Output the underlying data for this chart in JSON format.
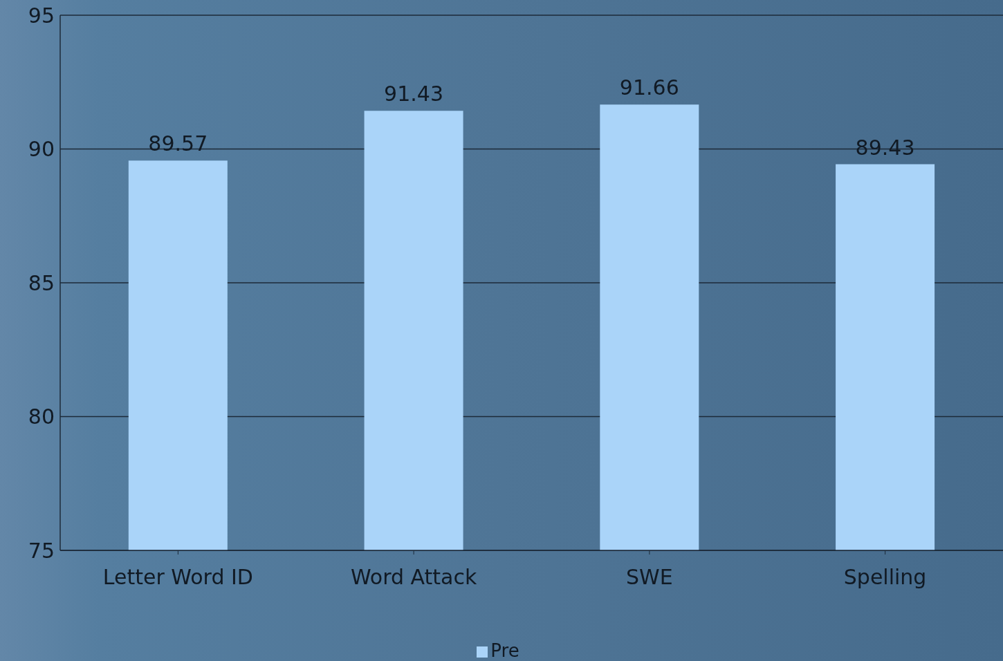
{
  "chart_data": {
    "type": "bar",
    "categories": [
      "Letter Word ID",
      "Word Attack",
      "SWE",
      "Spelling"
    ],
    "series": [
      {
        "name": "Pre",
        "color": "#aad4f9",
        "values": [
          89.57,
          91.43,
          91.66,
          89.43
        ]
      }
    ],
    "ylim": [
      75,
      95
    ],
    "yticks": [
      75,
      80,
      85,
      90,
      95
    ],
    "grid": "y",
    "data_labels": true,
    "legend": "bottom"
  }
}
